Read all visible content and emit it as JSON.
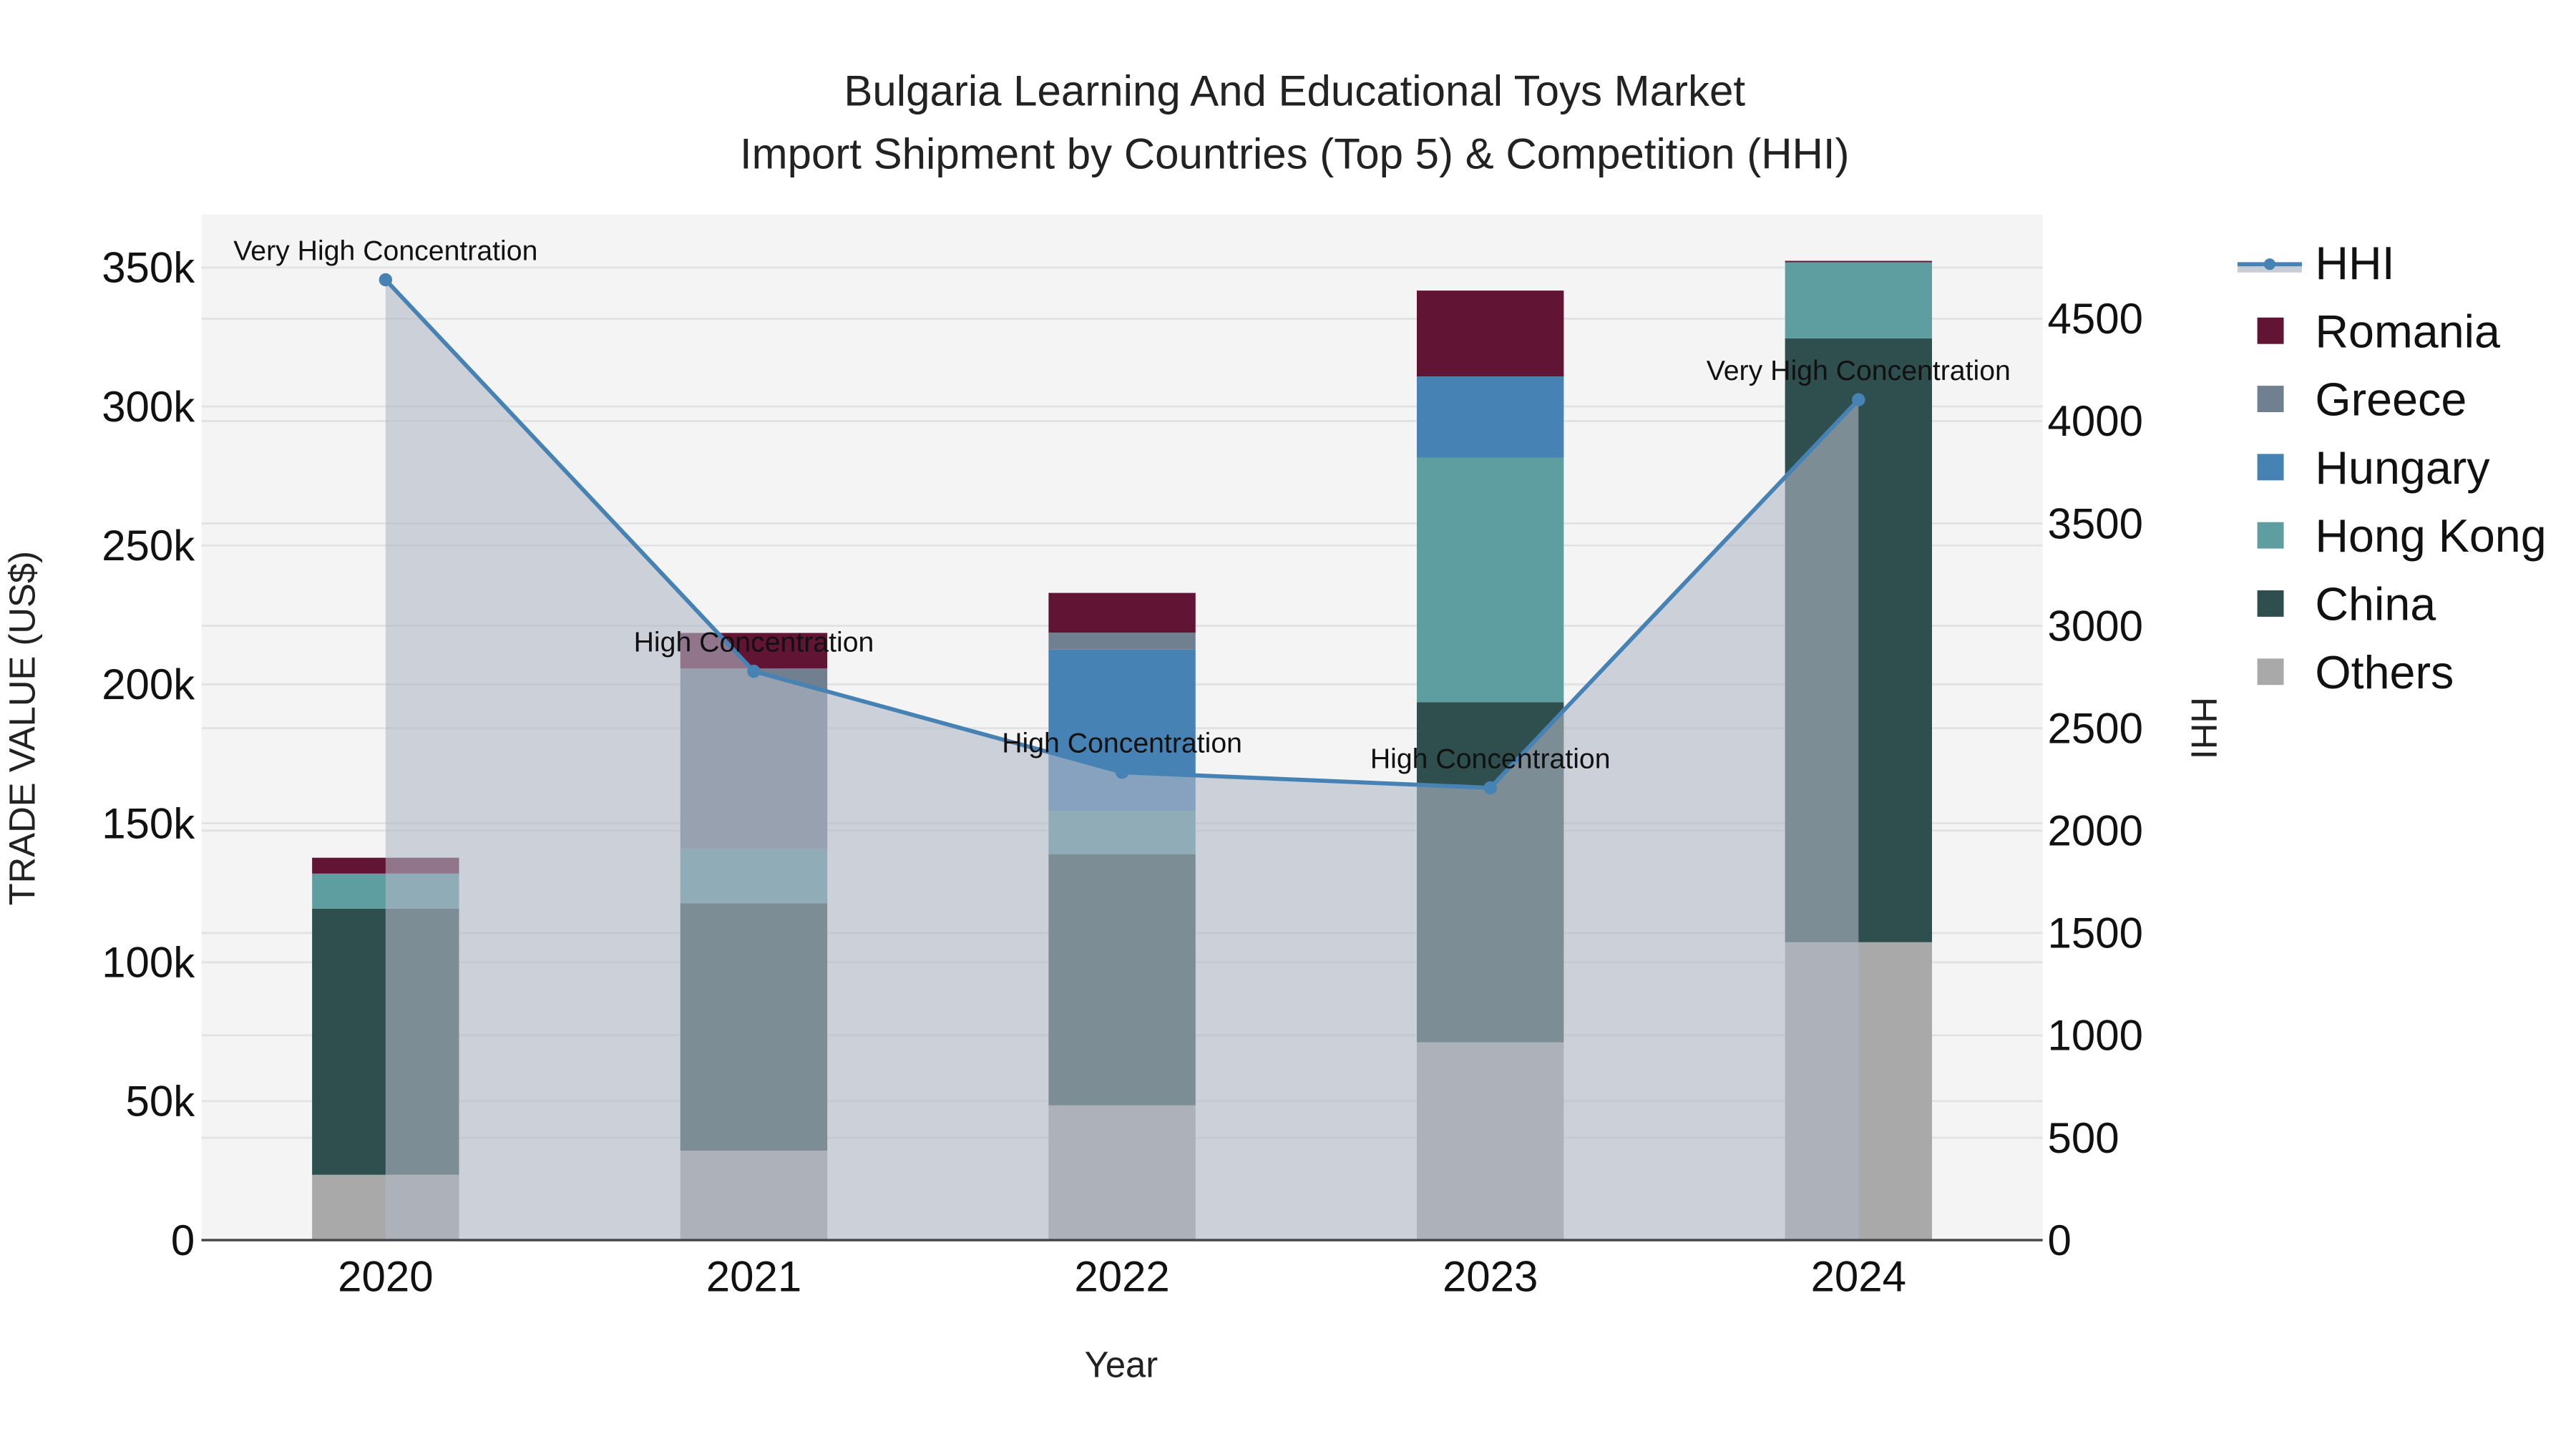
{
  "title": {
    "line1": "Bulgaria Learning And Educational Toys Market",
    "line2": "Import Shipment by Countries (Top 5) & Competition (HHI)"
  },
  "axes": {
    "x_title": "Year",
    "y_left_title": "TRADE VALUE (US$)",
    "y_right_title": "HHI",
    "y_left_ticks": [
      "0",
      "50k",
      "100k",
      "150k",
      "200k",
      "250k",
      "300k",
      "350k"
    ],
    "y_right_ticks": [
      "0",
      "500",
      "1000",
      "1500",
      "2000",
      "2500",
      "3000",
      "3500",
      "4000",
      "4500"
    ]
  },
  "legend": {
    "items": [
      {
        "label": "HHI",
        "color": "#4682B4",
        "kind": "line"
      },
      {
        "label": "Romania",
        "color": "#611434",
        "kind": "box"
      },
      {
        "label": "Greece",
        "color": "#708090",
        "kind": "box"
      },
      {
        "label": "Hungary",
        "color": "#4682B4",
        "kind": "box"
      },
      {
        "label": "Hong Kong",
        "color": "#5F9EA0",
        "kind": "box"
      },
      {
        "label": "China",
        "color": "#2F4F4F",
        "kind": "box"
      },
      {
        "label": "Others",
        "color": "#A9A9A9",
        "kind": "box"
      }
    ]
  },
  "chart_data": {
    "type": "bar",
    "stacked": true,
    "title": "Bulgaria Learning And Educational Toys Market — Import Shipment by Countries (Top 5) & Competition (HHI)",
    "xlabel": "Year",
    "ylabel": "TRADE VALUE (US$)",
    "y2label": "HHI",
    "categories": [
      "2020",
      "2021",
      "2022",
      "2023",
      "2024"
    ],
    "ylim": [
      0,
      368000
    ],
    "y2lim": [
      0,
      5000
    ],
    "grid": true,
    "legend_position": "right",
    "series": [
      {
        "name": "Others",
        "color": "#A9A9A9",
        "values": [
          23500,
          32200,
          48500,
          71200,
          107200
        ]
      },
      {
        "name": "China",
        "color": "#2F4F4F",
        "values": [
          95800,
          89000,
          90400,
          122400,
          217300
        ]
      },
      {
        "name": "Hong Kong",
        "color": "#5F9EA0",
        "values": [
          12600,
          19500,
          15600,
          88000,
          27400
        ]
      },
      {
        "name": "Hungary",
        "color": "#4682B4",
        "values": [
          0,
          0,
          58000,
          29200,
          0
        ]
      },
      {
        "name": "Greece",
        "color": "#708090",
        "values": [
          0,
          65000,
          6100,
          0,
          0
        ]
      },
      {
        "name": "Romania",
        "color": "#611434",
        "values": [
          5700,
          12800,
          14300,
          30900,
          500
        ]
      }
    ],
    "line_series": {
      "name": "HHI",
      "axis": "y2",
      "type": "line+area",
      "color": "#4682B4",
      "values": [
        4690,
        2778,
        2285,
        2209,
        4104
      ]
    },
    "annotations": [
      {
        "x": "2020",
        "text": "Very High Concentration"
      },
      {
        "x": "2021",
        "text": "High Concentration"
      },
      {
        "x": "2022",
        "text": "High Concentration"
      },
      {
        "x": "2023",
        "text": "High Concentration"
      },
      {
        "x": "2024",
        "text": "Very High Concentration"
      }
    ]
  }
}
